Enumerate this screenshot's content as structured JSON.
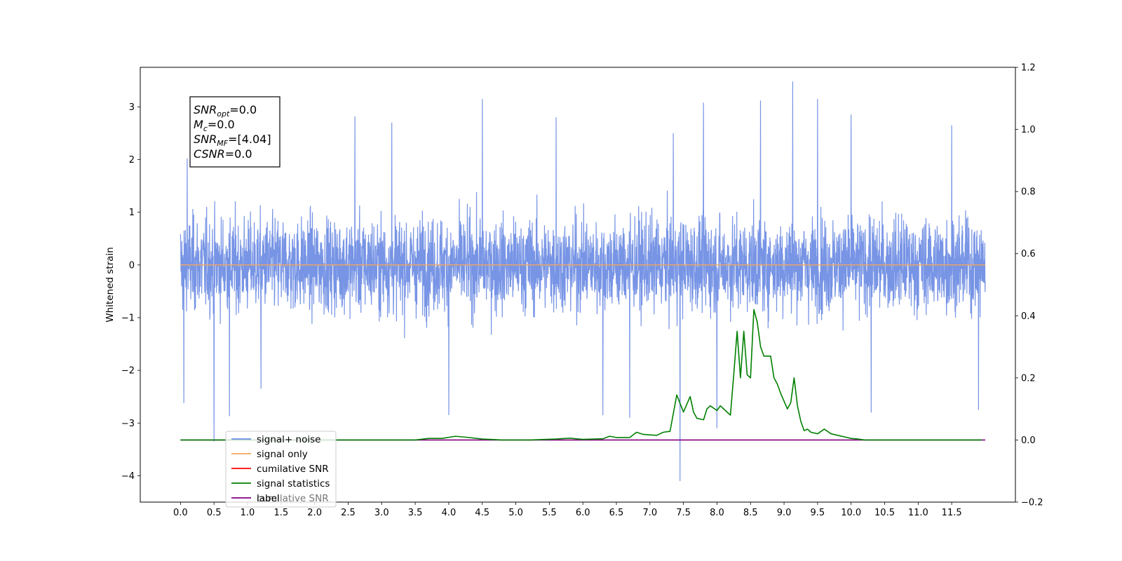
{
  "chart_data": {
    "type": "line",
    "ylabel": "Whitened strain",
    "xlim": [
      -0.6,
      12.45
    ],
    "ylim": [
      -4.5,
      3.75
    ],
    "y2lim": [
      -0.2,
      1.2
    ],
    "x_ticks": [
      "0.0",
      "0.5",
      "1.0",
      "1.5",
      "2.0",
      "2.5",
      "3.0",
      "3.5",
      "4.0",
      "4.5",
      "5.0",
      "5.5",
      "6.0",
      "6.5",
      "7.0",
      "7.5",
      "8.0",
      "8.5",
      "9.0",
      "9.5",
      "10.0",
      "10.5",
      "11.0",
      "11.5"
    ],
    "y_ticks": [
      "3",
      "2",
      "1",
      "0",
      "−1",
      "−2",
      "−3",
      "−4"
    ],
    "y_tick_values": [
      3,
      2,
      1,
      0,
      -1,
      -2,
      -3,
      -4
    ],
    "y2_ticks": [
      "1.2",
      "1.0",
      "0.8",
      "0.6",
      "0.4",
      "0.2",
      "0.0",
      "−0.2"
    ],
    "y2_tick_values": [
      1.2,
      1.0,
      0.8,
      0.6,
      0.4,
      0.2,
      0.0,
      -0.2
    ],
    "grid": false,
    "legend_position": "bottom-left",
    "annotation": {
      "lines": [
        {
          "main": "SNR",
          "sub": "opt",
          "rest": "=0.0"
        },
        {
          "main": "M",
          "sub": "c",
          "rest": "=0.0"
        },
        {
          "main": "SNR",
          "sub": "MF",
          "rest": "=[4.04]"
        },
        {
          "main": "CSNR",
          "sub": "",
          "rest": "=0.0"
        }
      ]
    },
    "series": [
      {
        "name": "signal+ noise",
        "color": "#6b8be3",
        "axis": "left",
        "x_range": [
          0.0,
          12.0
        ],
        "noise_envelope": [
          -1.5,
          1.5
        ],
        "peaks": [
          {
            "x": 0.05,
            "y": -2.62
          },
          {
            "x": 0.1,
            "y": 2.02
          },
          {
            "x": 0.5,
            "y": -3.35
          },
          {
            "x": 0.73,
            "y": -2.87
          },
          {
            "x": 1.2,
            "y": -2.35
          },
          {
            "x": 2.6,
            "y": 2.82
          },
          {
            "x": 3.15,
            "y": 2.7
          },
          {
            "x": 4.0,
            "y": -2.85
          },
          {
            "x": 4.5,
            "y": 3.15
          },
          {
            "x": 5.6,
            "y": 2.8
          },
          {
            "x": 6.3,
            "y": -2.85
          },
          {
            "x": 6.7,
            "y": -2.9
          },
          {
            "x": 7.35,
            "y": 2.5
          },
          {
            "x": 7.45,
            "y": -4.1
          },
          {
            "x": 7.8,
            "y": 3.08
          },
          {
            "x": 8.0,
            "y": -3.1
          },
          {
            "x": 8.65,
            "y": 3.12
          },
          {
            "x": 9.13,
            "y": 3.48
          },
          {
            "x": 9.5,
            "y": 3.15
          },
          {
            "x": 10.0,
            "y": 2.85
          },
          {
            "x": 10.3,
            "y": -2.8
          },
          {
            "x": 11.5,
            "y": 2.65
          },
          {
            "x": 11.9,
            "y": -2.75
          }
        ]
      },
      {
        "name": "signal only",
        "color": "#f5a65a",
        "axis": "left",
        "x": [
          0.0,
          12.0
        ],
        "y": [
          0.0,
          0.0
        ]
      },
      {
        "name": "cumilative SNR",
        "color": "#ff0000",
        "axis": "right",
        "x": [],
        "y": []
      },
      {
        "name": "signal statistics",
        "color": "#008000",
        "axis": "right",
        "x": [
          0.0,
          3.5,
          3.7,
          3.9,
          4.1,
          4.3,
          4.5,
          4.8,
          5.2,
          5.6,
          5.8,
          6.0,
          6.3,
          6.4,
          6.5,
          6.7,
          6.8,
          6.9,
          7.1,
          7.2,
          7.3,
          7.4,
          7.5,
          7.6,
          7.65,
          7.7,
          7.8,
          7.85,
          7.9,
          8.0,
          8.05,
          8.1,
          8.2,
          8.25,
          8.3,
          8.35,
          8.4,
          8.45,
          8.5,
          8.55,
          8.6,
          8.65,
          8.7,
          8.8,
          8.85,
          8.9,
          8.95,
          9.05,
          9.1,
          9.15,
          9.2,
          9.25,
          9.3,
          9.35,
          9.4,
          9.5,
          9.6,
          9.7,
          9.8,
          9.9,
          10.0,
          10.1,
          10.2,
          10.3,
          10.4,
          10.6,
          11.0,
          11.95
        ],
        "y": [
          0.0,
          0.0,
          0.005,
          0.005,
          0.012,
          0.008,
          0.003,
          0.0,
          0.0,
          0.003,
          0.006,
          0.002,
          0.004,
          0.012,
          0.008,
          0.008,
          0.025,
          0.018,
          0.015,
          0.025,
          0.028,
          0.145,
          0.09,
          0.14,
          0.09,
          0.07,
          0.065,
          0.1,
          0.11,
          0.095,
          0.11,
          0.1,
          0.08,
          0.21,
          0.35,
          0.2,
          0.35,
          0.21,
          0.2,
          0.42,
          0.38,
          0.3,
          0.27,
          0.27,
          0.2,
          0.18,
          0.15,
          0.1,
          0.12,
          0.2,
          0.11,
          0.06,
          0.03,
          0.035,
          0.025,
          0.02,
          0.035,
          0.02,
          0.015,
          0.01,
          0.005,
          0.003,
          0.0,
          0.0,
          0.0,
          0.0,
          0.0,
          0.0
        ]
      },
      {
        "name": "label",
        "color": "#800080",
        "axis": "right",
        "x": [
          0.0,
          12.0
        ],
        "y": [
          0.0,
          0.0
        ]
      }
    ],
    "legend_hidden_text": "cumilative SNR"
  }
}
